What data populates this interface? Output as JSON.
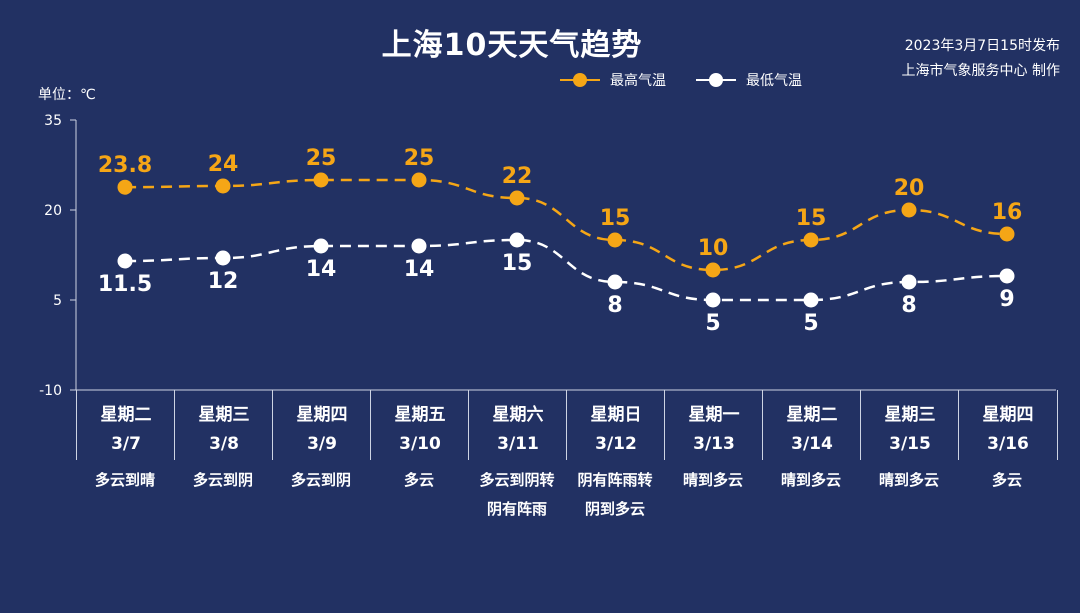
{
  "title": "上海10天天气趋势",
  "issued": "2023年3月7日15时发布",
  "producer": "上海市气象服务中心 制作",
  "unit_label": "单位：℃",
  "legend": {
    "high": "最高气温",
    "low": "最低气温"
  },
  "colors": {
    "background": "#223163",
    "high": "#f5a616",
    "low": "#ffffff",
    "axis": "#cdd3e3"
  },
  "days": [
    {
      "weekday": "星期二",
      "date": "3/7",
      "weather": "多云到晴"
    },
    {
      "weekday": "星期三",
      "date": "3/8",
      "weather": "多云到阴"
    },
    {
      "weekday": "星期四",
      "date": "3/9",
      "weather": "多云到阴"
    },
    {
      "weekday": "星期五",
      "date": "3/10",
      "weather": "多云"
    },
    {
      "weekday": "星期六",
      "date": "3/11",
      "weather": "多云到阴转\n阴有阵雨"
    },
    {
      "weekday": "星期日",
      "date": "3/12",
      "weather": "阴有阵雨转\n阴到多云"
    },
    {
      "weekday": "星期一",
      "date": "3/13",
      "weather": "晴到多云"
    },
    {
      "weekday": "星期二",
      "date": "3/14",
      "weather": "晴到多云"
    },
    {
      "weekday": "星期三",
      "date": "3/15",
      "weather": "晴到多云"
    },
    {
      "weekday": "星期四",
      "date": "3/16",
      "weather": "多云"
    }
  ],
  "chart_data": {
    "type": "line",
    "categories": [
      "3/7",
      "3/8",
      "3/9",
      "3/10",
      "3/11",
      "3/12",
      "3/13",
      "3/14",
      "3/15",
      "3/16"
    ],
    "series": [
      {
        "name": "最高气温",
        "values": [
          23.8,
          24,
          25,
          25,
          22,
          15,
          10,
          15,
          20,
          16
        ],
        "labels": [
          "23.8",
          "24",
          "25",
          "25",
          "22",
          "15",
          "10",
          "15",
          "20",
          "16"
        ]
      },
      {
        "name": "最低气温",
        "values": [
          11.5,
          12,
          14,
          14,
          15,
          8,
          5,
          5,
          8,
          9
        ],
        "labels": [
          "11.5",
          "12",
          "14",
          "14",
          "15",
          "8",
          "5",
          "5",
          "8",
          "9"
        ]
      }
    ],
    "ylim": [
      -10,
      35
    ],
    "yticks": [
      -10,
      5,
      20,
      35
    ],
    "ytick_labels": [
      "-10",
      "5",
      "20",
      "35"
    ],
    "line_style": "dashed",
    "legend_position": "top"
  }
}
